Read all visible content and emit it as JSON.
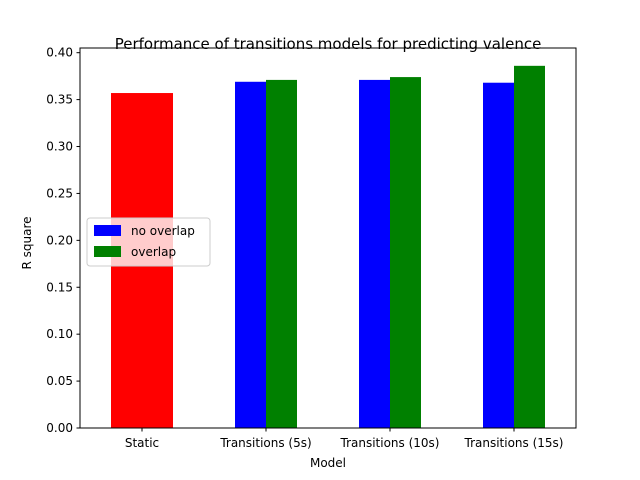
{
  "chart_data": {
    "type": "bar",
    "title": "Performance of transitions models for predicting valence",
    "xlabel": "Model",
    "ylabel": "R square",
    "categories": [
      "Static",
      "Transitions (5s)",
      "Transitions (10s)",
      "Transitions (15s)"
    ],
    "series": [
      {
        "name": "static",
        "color": "#ff0000",
        "values": [
          0.357,
          null,
          null,
          null
        ]
      },
      {
        "name": "no overlap",
        "color": "#0000ff",
        "values": [
          null,
          0.369,
          0.371,
          0.368
        ]
      },
      {
        "name": "overlap",
        "color": "#008000",
        "values": [
          null,
          0.371,
          0.374,
          0.386
        ]
      }
    ],
    "legend_entries": [
      {
        "name": "no overlap",
        "color": "#0000ff"
      },
      {
        "name": "overlap",
        "color": "#008000"
      }
    ],
    "legend_position": "center-left",
    "ylim": [
      0,
      0.405
    ],
    "yticks": [
      "0.00",
      "0.05",
      "0.10",
      "0.15",
      "0.20",
      "0.25",
      "0.30",
      "0.35",
      "0.40"
    ],
    "grid": false
  }
}
